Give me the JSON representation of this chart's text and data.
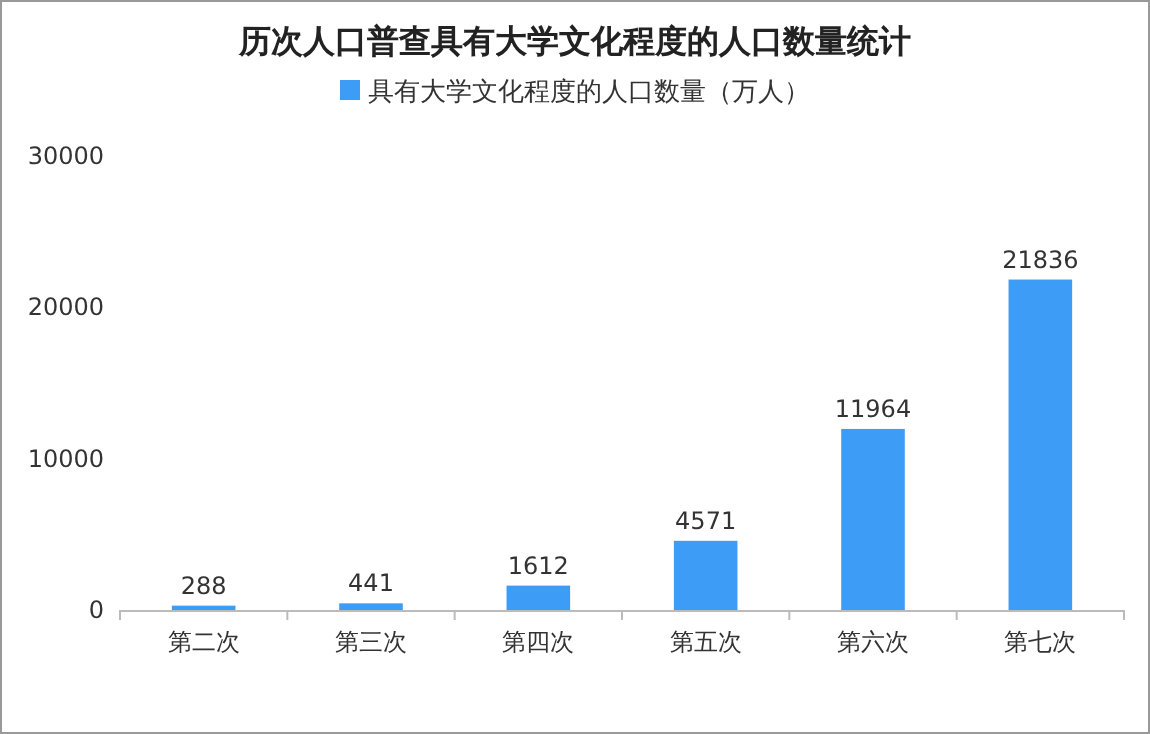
{
  "chart_data": {
    "type": "bar",
    "title": "历次人口普查具有大学文化程度的人口数量统计",
    "categories": [
      "第二次",
      "第三次",
      "第四次",
      "第五次",
      "第六次",
      "第七次"
    ],
    "series": [
      {
        "name": "具有大学文化程度的人口数量（万人）",
        "color": "#3d9cf5",
        "values": [
          288,
          441,
          1612,
          4571,
          11964,
          21836
        ]
      }
    ],
    "ylim": [
      0,
      30000
    ],
    "yticks": [
      0,
      10000,
      20000,
      30000
    ],
    "data_labels": true,
    "legend": "top",
    "grid": false
  }
}
